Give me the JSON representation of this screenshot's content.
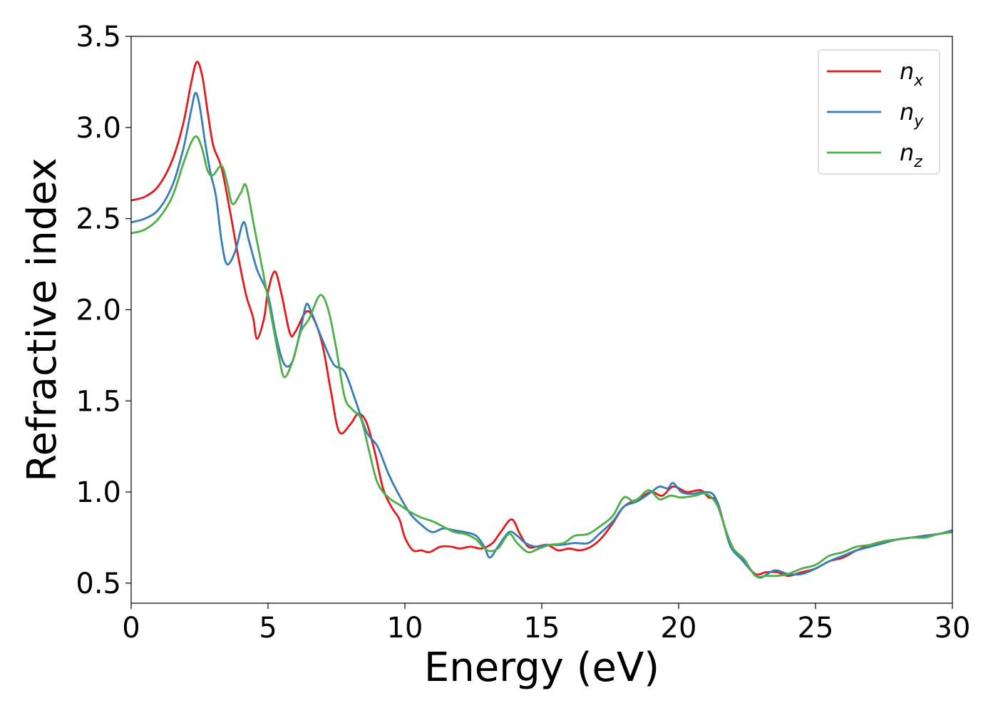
{
  "chart_data": {
    "type": "line",
    "title": "",
    "xlabel": "Energy (eV)",
    "ylabel": "Refractive index",
    "xlim": [
      0,
      30
    ],
    "ylim": [
      0.39,
      3.5
    ],
    "xticks": [
      0,
      5,
      10,
      15,
      20,
      25,
      30
    ],
    "xtick_labels": [
      "0",
      "5",
      "10",
      "15",
      "20",
      "25",
      "30"
    ],
    "yticks": [
      0.5,
      1.0,
      1.5,
      2.0,
      2.5,
      3.0,
      3.5
    ],
    "ytick_labels": [
      "0.5",
      "1.0",
      "1.5",
      "2.0",
      "2.5",
      "3.0",
      "3.5"
    ],
    "grid": false,
    "legend": {
      "placement": "top-right"
    },
    "series": [
      {
        "name": "n_x",
        "name_base": "n",
        "name_sub": "x",
        "color": "#e41a1c",
        "points": [
          [
            0,
            2.6
          ],
          [
            0.5,
            2.62
          ],
          [
            1.0,
            2.68
          ],
          [
            1.5,
            2.82
          ],
          [
            1.9,
            3.02
          ],
          [
            2.2,
            3.25
          ],
          [
            2.4,
            3.36
          ],
          [
            2.6,
            3.28
          ],
          [
            2.8,
            3.08
          ],
          [
            3.0,
            2.9
          ],
          [
            3.3,
            2.78
          ],
          [
            3.6,
            2.55
          ],
          [
            3.9,
            2.3
          ],
          [
            4.2,
            2.08
          ],
          [
            4.45,
            1.96
          ],
          [
            4.6,
            1.84
          ],
          [
            4.85,
            1.95
          ],
          [
            5.0,
            2.1
          ],
          [
            5.25,
            2.21
          ],
          [
            5.5,
            2.08
          ],
          [
            5.8,
            1.87
          ],
          [
            6.0,
            1.88
          ],
          [
            6.4,
            1.99
          ],
          [
            6.7,
            1.94
          ],
          [
            7.0,
            1.8
          ],
          [
            7.3,
            1.55
          ],
          [
            7.6,
            1.33
          ],
          [
            8.0,
            1.37
          ],
          [
            8.3,
            1.43
          ],
          [
            8.6,
            1.38
          ],
          [
            8.9,
            1.22
          ],
          [
            9.2,
            1.02
          ],
          [
            9.5,
            0.92
          ],
          [
            9.8,
            0.85
          ],
          [
            10.0,
            0.75
          ],
          [
            10.3,
            0.68
          ],
          [
            10.6,
            0.68
          ],
          [
            10.9,
            0.67
          ],
          [
            11.3,
            0.7
          ],
          [
            11.7,
            0.7
          ],
          [
            12.0,
            0.69
          ],
          [
            12.4,
            0.7
          ],
          [
            12.8,
            0.69
          ],
          [
            13.2,
            0.72
          ],
          [
            13.5,
            0.78
          ],
          [
            13.9,
            0.85
          ],
          [
            14.2,
            0.77
          ],
          [
            14.5,
            0.7
          ],
          [
            14.8,
            0.7
          ],
          [
            15.2,
            0.71
          ],
          [
            15.6,
            0.68
          ],
          [
            16.0,
            0.69
          ],
          [
            16.4,
            0.68
          ],
          [
            16.8,
            0.7
          ],
          [
            17.2,
            0.75
          ],
          [
            17.6,
            0.83
          ],
          [
            18.0,
            0.92
          ],
          [
            18.5,
            0.96
          ],
          [
            19.0,
            1.0
          ],
          [
            19.4,
            0.98
          ],
          [
            19.8,
            1.03
          ],
          [
            20.3,
            1.0
          ],
          [
            20.8,
            1.01
          ],
          [
            21.1,
            0.97
          ],
          [
            21.4,
            0.95
          ],
          [
            21.7,
            0.8
          ],
          [
            22.0,
            0.68
          ],
          [
            22.4,
            0.62
          ],
          [
            22.8,
            0.55
          ],
          [
            23.2,
            0.56
          ],
          [
            23.6,
            0.56
          ],
          [
            24.0,
            0.54
          ],
          [
            24.5,
            0.56
          ],
          [
            25.0,
            0.58
          ],
          [
            25.5,
            0.62
          ],
          [
            26.0,
            0.64
          ],
          [
            26.5,
            0.68
          ],
          [
            27.0,
            0.71
          ],
          [
            27.5,
            0.73
          ],
          [
            28.0,
            0.74
          ],
          [
            28.5,
            0.75
          ],
          [
            29.0,
            0.76
          ],
          [
            29.5,
            0.77
          ],
          [
            30.0,
            0.78
          ]
        ]
      },
      {
        "name": "n_y",
        "name_base": "n",
        "name_sub": "y",
        "color": "#377eb8",
        "points": [
          [
            0,
            2.48
          ],
          [
            0.5,
            2.5
          ],
          [
            1.0,
            2.55
          ],
          [
            1.5,
            2.68
          ],
          [
            1.9,
            2.88
          ],
          [
            2.2,
            3.1
          ],
          [
            2.35,
            3.19
          ],
          [
            2.5,
            3.12
          ],
          [
            2.7,
            2.92
          ],
          [
            2.9,
            2.75
          ],
          [
            3.1,
            2.62
          ],
          [
            3.3,
            2.38
          ],
          [
            3.5,
            2.25
          ],
          [
            3.8,
            2.32
          ],
          [
            4.1,
            2.48
          ],
          [
            4.3,
            2.38
          ],
          [
            4.6,
            2.22
          ],
          [
            5.0,
            2.08
          ],
          [
            5.3,
            1.85
          ],
          [
            5.6,
            1.7
          ],
          [
            5.9,
            1.72
          ],
          [
            6.2,
            1.9
          ],
          [
            6.4,
            2.03
          ],
          [
            6.6,
            1.98
          ],
          [
            7.0,
            1.83
          ],
          [
            7.4,
            1.7
          ],
          [
            7.8,
            1.66
          ],
          [
            8.2,
            1.5
          ],
          [
            8.6,
            1.33
          ],
          [
            9.0,
            1.25
          ],
          [
            9.4,
            1.1
          ],
          [
            9.8,
            0.98
          ],
          [
            10.2,
            0.88
          ],
          [
            10.6,
            0.82
          ],
          [
            11.0,
            0.78
          ],
          [
            11.4,
            0.8
          ],
          [
            11.8,
            0.79
          ],
          [
            12.2,
            0.78
          ],
          [
            12.6,
            0.76
          ],
          [
            12.9,
            0.7
          ],
          [
            13.1,
            0.64
          ],
          [
            13.4,
            0.7
          ],
          [
            13.8,
            0.78
          ],
          [
            14.1,
            0.76
          ],
          [
            14.4,
            0.72
          ],
          [
            14.8,
            0.7
          ],
          [
            15.2,
            0.71
          ],
          [
            15.7,
            0.71
          ],
          [
            16.2,
            0.72
          ],
          [
            16.7,
            0.72
          ],
          [
            17.1,
            0.77
          ],
          [
            17.6,
            0.84
          ],
          [
            18.0,
            0.92
          ],
          [
            18.5,
            0.95
          ],
          [
            19.0,
            1.0
          ],
          [
            19.3,
            1.03
          ],
          [
            19.6,
            1.02
          ],
          [
            19.8,
            1.05
          ],
          [
            20.1,
            1.0
          ],
          [
            20.5,
            0.99
          ],
          [
            20.9,
            1.0
          ],
          [
            21.3,
            0.98
          ],
          [
            21.6,
            0.85
          ],
          [
            21.9,
            0.7
          ],
          [
            22.3,
            0.63
          ],
          [
            22.7,
            0.56
          ],
          [
            23.0,
            0.53
          ],
          [
            23.5,
            0.57
          ],
          [
            24.0,
            0.55
          ],
          [
            24.5,
            0.55
          ],
          [
            25.0,
            0.58
          ],
          [
            25.5,
            0.62
          ],
          [
            26.0,
            0.65
          ],
          [
            26.5,
            0.68
          ],
          [
            27.0,
            0.7
          ],
          [
            27.5,
            0.72
          ],
          [
            28.0,
            0.74
          ],
          [
            28.5,
            0.75
          ],
          [
            29.0,
            0.76
          ],
          [
            29.5,
            0.77
          ],
          [
            30.0,
            0.79
          ]
        ]
      },
      {
        "name": "n_z",
        "name_base": "n",
        "name_sub": "z",
        "color": "#4daf4a",
        "points": [
          [
            0,
            2.42
          ],
          [
            0.5,
            2.44
          ],
          [
            1.0,
            2.5
          ],
          [
            1.5,
            2.62
          ],
          [
            1.9,
            2.8
          ],
          [
            2.2,
            2.92
          ],
          [
            2.4,
            2.95
          ],
          [
            2.6,
            2.88
          ],
          [
            2.8,
            2.76
          ],
          [
            3.0,
            2.74
          ],
          [
            3.3,
            2.79
          ],
          [
            3.5,
            2.7
          ],
          [
            3.7,
            2.58
          ],
          [
            4.0,
            2.64
          ],
          [
            4.2,
            2.68
          ],
          [
            4.5,
            2.45
          ],
          [
            4.8,
            2.22
          ],
          [
            5.1,
            1.98
          ],
          [
            5.4,
            1.74
          ],
          [
            5.6,
            1.63
          ],
          [
            5.9,
            1.72
          ],
          [
            6.2,
            1.88
          ],
          [
            6.5,
            1.95
          ],
          [
            6.9,
            2.08
          ],
          [
            7.2,
            2.0
          ],
          [
            7.5,
            1.78
          ],
          [
            7.8,
            1.52
          ],
          [
            8.1,
            1.45
          ],
          [
            8.4,
            1.4
          ],
          [
            8.7,
            1.22
          ],
          [
            9.0,
            1.05
          ],
          [
            9.4,
            0.97
          ],
          [
            9.8,
            0.93
          ],
          [
            10.2,
            0.89
          ],
          [
            10.6,
            0.86
          ],
          [
            11.0,
            0.84
          ],
          [
            11.4,
            0.81
          ],
          [
            11.8,
            0.78
          ],
          [
            12.2,
            0.77
          ],
          [
            12.6,
            0.74
          ],
          [
            13.0,
            0.68
          ],
          [
            13.4,
            0.69
          ],
          [
            13.8,
            0.77
          ],
          [
            14.1,
            0.72
          ],
          [
            14.5,
            0.67
          ],
          [
            14.9,
            0.69
          ],
          [
            15.3,
            0.71
          ],
          [
            15.8,
            0.72
          ],
          [
            16.2,
            0.76
          ],
          [
            16.7,
            0.77
          ],
          [
            17.2,
            0.82
          ],
          [
            17.6,
            0.87
          ],
          [
            18.0,
            0.97
          ],
          [
            18.4,
            0.95
          ],
          [
            18.9,
            1.01
          ],
          [
            19.3,
            0.96
          ],
          [
            19.7,
            0.98
          ],
          [
            20.1,
            0.97
          ],
          [
            20.6,
            0.98
          ],
          [
            21.0,
            0.99
          ],
          [
            21.4,
            0.93
          ],
          [
            21.7,
            0.8
          ],
          [
            22.0,
            0.69
          ],
          [
            22.4,
            0.63
          ],
          [
            22.8,
            0.54
          ],
          [
            23.2,
            0.54
          ],
          [
            23.6,
            0.54
          ],
          [
            24.0,
            0.55
          ],
          [
            24.5,
            0.58
          ],
          [
            25.0,
            0.6
          ],
          [
            25.5,
            0.65
          ],
          [
            26.0,
            0.67
          ],
          [
            26.5,
            0.7
          ],
          [
            27.0,
            0.71
          ],
          [
            27.5,
            0.73
          ],
          [
            28.0,
            0.74
          ],
          [
            28.5,
            0.75
          ],
          [
            29.0,
            0.75
          ],
          [
            29.5,
            0.77
          ],
          [
            30.0,
            0.78
          ]
        ]
      }
    ]
  }
}
